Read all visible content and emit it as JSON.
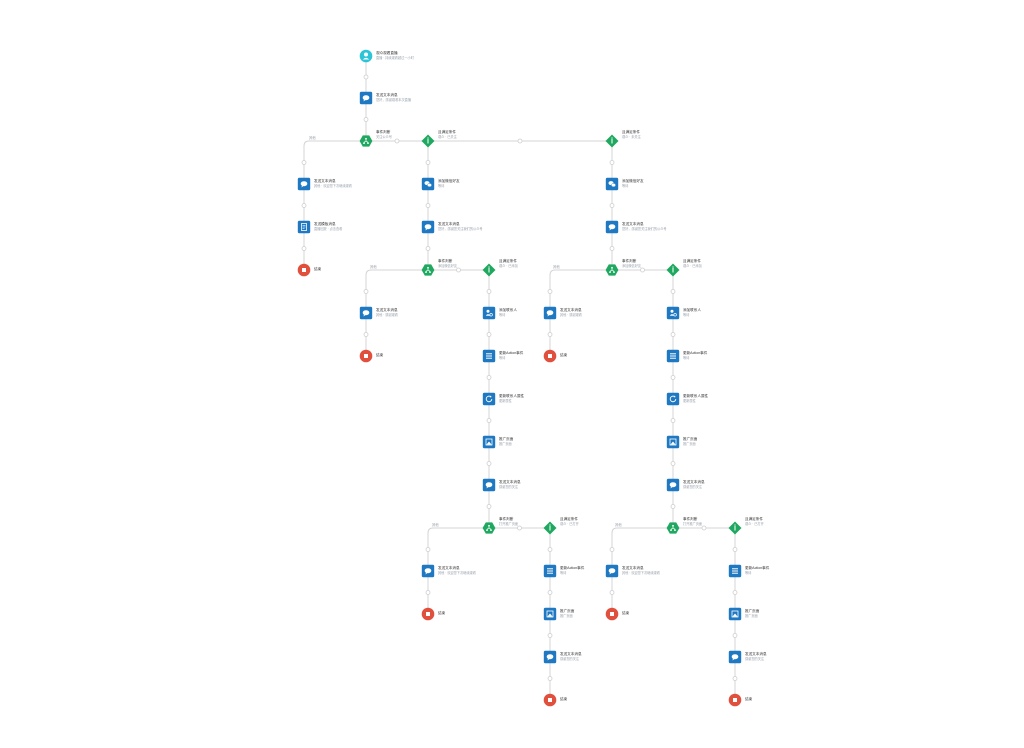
{
  "colors": {
    "wire": "#d4d4d4",
    "dot": "#cfcfcf",
    "action": "#1e78c2",
    "trigger": "#2ec4d8",
    "branch": "#21a860",
    "end": "#e0503c"
  },
  "nodes": [
    {
      "id": "start",
      "kind": "trigger",
      "icon": "user-icon",
      "title": "观众观看直播",
      "sub": "直播 · 持续观看超过一小时"
    },
    {
      "id": "msg1",
      "kind": "action",
      "icon": "chat-icon",
      "title": "发送文本消息",
      "sub": "您好，感谢观看本次直播"
    },
    {
      "id": "b1",
      "kind": "branch",
      "icon": "branch-icon",
      "title": "事件判断",
      "sub": "关注公众号"
    },
    {
      "id": "c1",
      "kind": "cond",
      "icon": "info-icon",
      "title": "且满足条件",
      "sub": "观众 · 已关注"
    },
    {
      "id": "c2",
      "kind": "cond",
      "icon": "info-icon",
      "title": "且满足条件",
      "sub": "观众 · 未关注"
    },
    {
      "id": "l1",
      "kind": "action",
      "icon": "chat-icon",
      "title": "发送文本消息",
      "sub": "其他 · 欢迎您下次继续观看"
    },
    {
      "id": "l2",
      "kind": "action",
      "icon": "doc-icon",
      "title": "发送模板消息",
      "sub": "直播回放 · 点击查看"
    },
    {
      "id": "l3",
      "kind": "end",
      "icon": "stop-icon",
      "title": "结束",
      "sub": ""
    },
    {
      "id": "w1",
      "kind": "action",
      "icon": "wechat-icon",
      "title": "添加微信好友",
      "sub": "等待"
    },
    {
      "id": "m1",
      "kind": "action",
      "icon": "chat-icon",
      "title": "发送文本消息",
      "sub": "您好，感谢您关注我们的公众号"
    },
    {
      "id": "b2",
      "kind": "branch",
      "icon": "branch-icon",
      "title": "事件判断",
      "sub": "添加微信好友"
    },
    {
      "id": "c3",
      "kind": "cond",
      "icon": "info-icon",
      "title": "且满足条件",
      "sub": "观众 · 已添加"
    },
    {
      "id": "l4",
      "kind": "action",
      "icon": "chat-icon",
      "title": "发送文本消息",
      "sub": "其他 · 感谢观看"
    },
    {
      "id": "l5",
      "kind": "end",
      "icon": "stop-icon",
      "title": "结束",
      "sub": ""
    },
    {
      "id": "p1",
      "kind": "action",
      "icon": "person-icon",
      "title": "添加联系人",
      "sub": "等待"
    },
    {
      "id": "p2",
      "kind": "action",
      "icon": "list-icon",
      "title": "更新Action事件",
      "sub": "等待"
    },
    {
      "id": "p3",
      "kind": "action",
      "icon": "refresh-icon",
      "title": "更新联系人属性",
      "sub": "更新属性"
    },
    {
      "id": "p4",
      "kind": "action",
      "icon": "image-icon",
      "title": "推广页面",
      "sub": "推广页面"
    },
    {
      "id": "p5",
      "kind": "action",
      "icon": "chat-icon",
      "title": "发送文本消息",
      "sub": "感谢您的关注"
    },
    {
      "id": "b3",
      "kind": "branch",
      "icon": "branch-icon",
      "title": "事件判断",
      "sub": "打开推广页面"
    },
    {
      "id": "c4",
      "kind": "cond",
      "icon": "info-icon",
      "title": "且满足条件",
      "sub": "观众 · 已打开"
    },
    {
      "id": "q1",
      "kind": "action",
      "icon": "chat-icon",
      "title": "发送文本消息",
      "sub": "其他 · 欢迎您下次继续观看"
    },
    {
      "id": "q2",
      "kind": "end",
      "icon": "stop-icon",
      "title": "结束",
      "sub": ""
    },
    {
      "id": "r1",
      "kind": "action",
      "icon": "list-icon",
      "title": "更新Action事件",
      "sub": "等待"
    },
    {
      "id": "r2",
      "kind": "action",
      "icon": "image-icon",
      "title": "推广页面",
      "sub": "推广页面"
    },
    {
      "id": "r3",
      "kind": "action",
      "icon": "chat-icon",
      "title": "发送文本消息",
      "sub": "感谢您的关注"
    },
    {
      "id": "r4",
      "kind": "end",
      "icon": "stop-icon",
      "title": "结束",
      "sub": ""
    },
    {
      "id": "w2",
      "kind": "action",
      "icon": "wechat-icon",
      "title": "添加微信好友",
      "sub": "等待"
    },
    {
      "id": "m2",
      "kind": "action",
      "icon": "chat-icon",
      "title": "发送文本消息",
      "sub": "您好，感谢您关注我们的公众号"
    },
    {
      "id": "b4",
      "kind": "branch",
      "icon": "branch-icon",
      "title": "事件判断",
      "sub": "添加微信好友"
    },
    {
      "id": "c5",
      "kind": "cond",
      "icon": "info-icon",
      "title": "且满足条件",
      "sub": "观众 · 已添加"
    },
    {
      "id": "s1",
      "kind": "action",
      "icon": "chat-icon",
      "title": "发送文本消息",
      "sub": "其他 · 感谢观看"
    },
    {
      "id": "s2",
      "kind": "end",
      "icon": "stop-icon",
      "title": "结束",
      "sub": ""
    },
    {
      "id": "t1",
      "kind": "action",
      "icon": "person-icon",
      "title": "添加联系人",
      "sub": "等待"
    },
    {
      "id": "t2",
      "kind": "action",
      "icon": "list-icon",
      "title": "更新Action事件",
      "sub": "等待"
    },
    {
      "id": "t3",
      "kind": "action",
      "icon": "refresh-icon",
      "title": "更新联系人属性",
      "sub": "更新属性"
    },
    {
      "id": "t4",
      "kind": "action",
      "icon": "image-icon",
      "title": "推广页面",
      "sub": "推广页面"
    },
    {
      "id": "t5",
      "kind": "action",
      "icon": "chat-icon",
      "title": "发送文本消息",
      "sub": "感谢您的关注"
    },
    {
      "id": "b5",
      "kind": "branch",
      "icon": "branch-icon",
      "title": "事件判断",
      "sub": "打开推广页面"
    },
    {
      "id": "c6",
      "kind": "cond",
      "icon": "info-icon",
      "title": "且满足条件",
      "sub": "观众 · 已打开"
    },
    {
      "id": "u1",
      "kind": "action",
      "icon": "chat-icon",
      "title": "发送文本消息",
      "sub": "其他 · 欢迎您下次继续观看"
    },
    {
      "id": "u2",
      "kind": "end",
      "icon": "stop-icon",
      "title": "结束",
      "sub": ""
    },
    {
      "id": "v1",
      "kind": "action",
      "icon": "list-icon",
      "title": "更新Action事件",
      "sub": "等待"
    },
    {
      "id": "v2",
      "kind": "action",
      "icon": "image-icon",
      "title": "推广页面",
      "sub": "推广页面"
    },
    {
      "id": "v3",
      "kind": "action",
      "icon": "chat-icon",
      "title": "发送文本消息",
      "sub": "感谢您的关注"
    },
    {
      "id": "v4",
      "kind": "end",
      "icon": "stop-icon",
      "title": "结束",
      "sub": ""
    }
  ],
  "branch_labels": [
    {
      "id": "bl1",
      "text": "其他"
    },
    {
      "id": "bl2",
      "text": "其他"
    },
    {
      "id": "bl3",
      "text": "其他"
    },
    {
      "id": "bl4",
      "text": "其他"
    },
    {
      "id": "bl5",
      "text": "其他"
    }
  ]
}
